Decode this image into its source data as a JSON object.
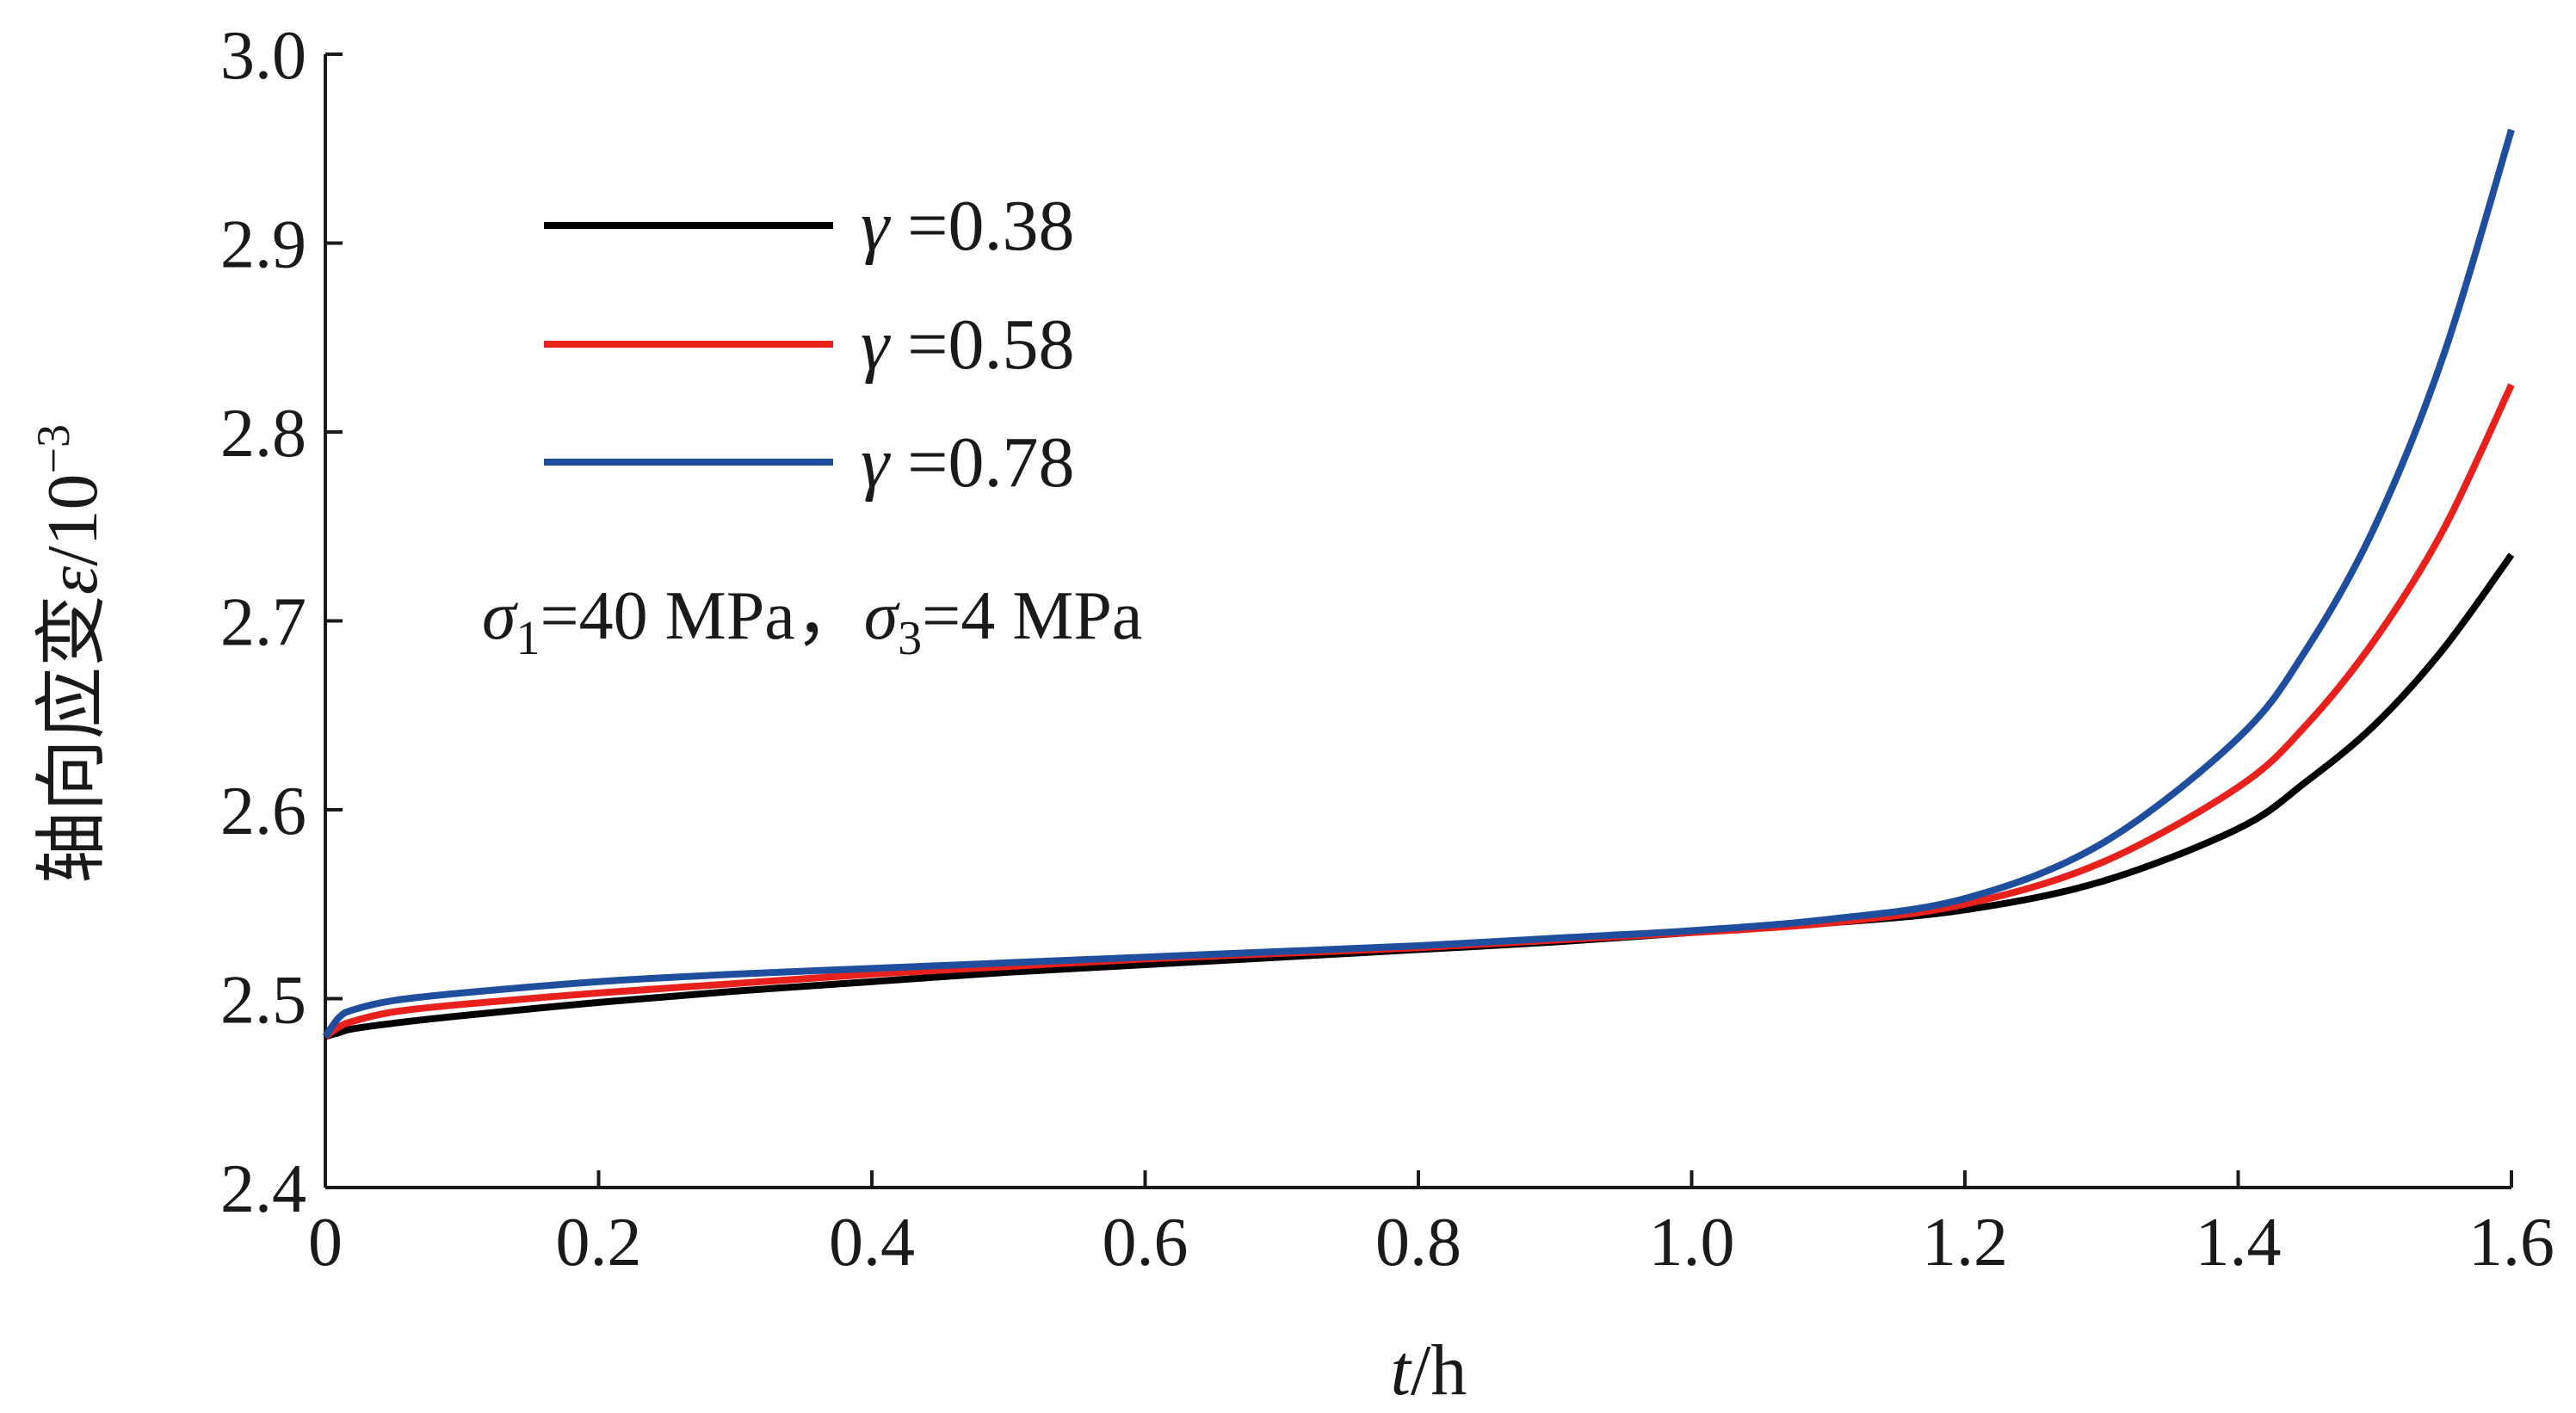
{
  "chart_data": {
    "type": "line",
    "title": "",
    "xlabel": {
      "var": "t",
      "unit": "/h"
    },
    "ylabel": {
      "text": "轴向应变",
      "var": "ε",
      "unit": "/10",
      "exp": "−3"
    },
    "xlim": [
      0,
      1.6
    ],
    "ylim": [
      2.4,
      3.0
    ],
    "xticks": [
      "0",
      "0.2",
      "0.4",
      "0.6",
      "0.8",
      "1.0",
      "1.2",
      "1.4",
      "1.6"
    ],
    "yticks": [
      "2.4",
      "2.5",
      "2.6",
      "2.7",
      "2.8",
      "2.9",
      "3.0"
    ],
    "grid": false,
    "legend_position": "upper-left",
    "x": [
      0,
      0.01,
      0.02,
      0.05,
      0.1,
      0.2,
      0.3,
      0.4,
      0.5,
      0.6,
      0.7,
      0.8,
      0.9,
      1.0,
      1.1,
      1.2,
      1.3,
      1.4,
      1.45,
      1.5,
      1.55,
      1.6
    ],
    "series": [
      {
        "name": "0.38",
        "color": "#000000",
        "values": [
          2.48,
          2.482,
          2.484,
          2.487,
          2.491,
          2.498,
          2.504,
          2.509,
          2.514,
          2.518,
          2.522,
          2.526,
          2.53,
          2.535,
          2.54,
          2.547,
          2.562,
          2.59,
          2.615,
          2.645,
          2.685,
          2.735
        ]
      },
      {
        "name": "0.58",
        "color": "#e8211d",
        "values": [
          2.48,
          2.485,
          2.488,
          2.493,
          2.497,
          2.503,
          2.508,
          2.513,
          2.517,
          2.521,
          2.524,
          2.527,
          2.531,
          2.535,
          2.54,
          2.55,
          2.572,
          2.612,
          2.645,
          2.69,
          2.748,
          2.825
        ]
      },
      {
        "name": "0.78",
        "color": "#1f4e9e",
        "values": [
          2.48,
          2.49,
          2.494,
          2.499,
          2.503,
          2.509,
          2.513,
          2.516,
          2.519,
          2.522,
          2.525,
          2.528,
          2.532,
          2.536,
          2.542,
          2.553,
          2.582,
          2.638,
          2.685,
          2.75,
          2.84,
          2.96
        ]
      }
    ],
    "legend_var": "γ",
    "annotation": {
      "s1": "σ",
      "s1_sub": "1",
      "s1_text": "=40 MPa",
      "sep": "，",
      "s3": "σ",
      "s3_sub": "3",
      "s3_text": "=4 MPa"
    }
  }
}
